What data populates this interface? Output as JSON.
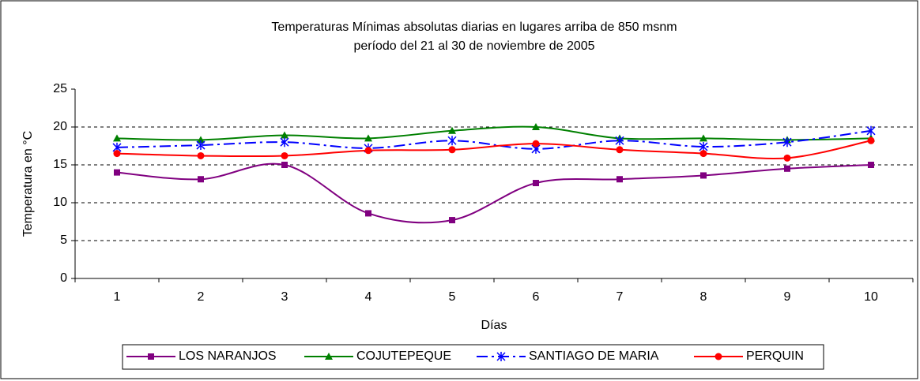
{
  "chart_data": {
    "type": "line",
    "title": "Temperaturas Mínimas absolutas diarias en lugares arriba de 850 msnm",
    "subtitle": "período del 21 al 30 de noviembre de 2005",
    "x_label": "Días",
    "y_label": "Temperatura en °C",
    "categories": [
      "1",
      "2",
      "3",
      "4",
      "5",
      "6",
      "7",
      "8",
      "9",
      "10"
    ],
    "series": [
      {
        "name": "LOS NARANJOS",
        "color": "#800080",
        "marker": "square",
        "dash": "solid",
        "values": [
          14,
          13.1,
          15,
          8.6,
          7.7,
          12.6,
          13.1,
          13.6,
          14.5,
          15
        ]
      },
      {
        "name": "COJUTEPEQUE",
        "color": "#008000",
        "marker": "triangle",
        "dash": "solid",
        "values": [
          18.5,
          18.3,
          18.9,
          18.5,
          19.5,
          20,
          18.5,
          18.5,
          18.3,
          18.5
        ]
      },
      {
        "name": "SANTIAGO DE MARIA",
        "color": "#0000ff",
        "marker": "asterisk",
        "dash": "dashdot",
        "values": [
          17.3,
          17.6,
          18,
          17.2,
          18.2,
          17.1,
          18.2,
          17.4,
          18,
          19.5
        ]
      },
      {
        "name": "PERQUIN",
        "color": "#ff0000",
        "marker": "circle",
        "dash": "solid",
        "values": [
          16.5,
          16.2,
          16.2,
          16.9,
          17,
          17.8,
          17,
          16.5,
          15.9,
          18.2
        ]
      }
    ],
    "ylim": [
      0,
      25
    ],
    "yticks": [
      0,
      5,
      10,
      15,
      20,
      25
    ],
    "grid": true,
    "legend": "bottom"
  }
}
